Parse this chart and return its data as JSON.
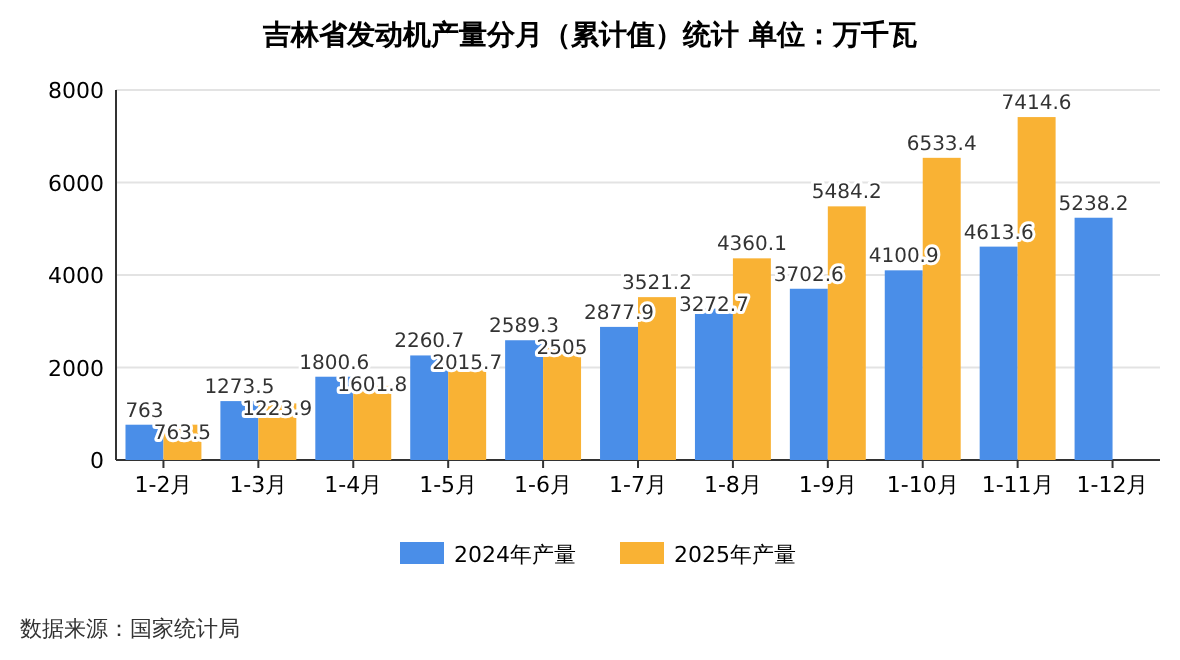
{
  "chart_data": {
    "type": "bar",
    "title": "吉林省发动机产量分月（累计值）统计  单位：万千瓦",
    "categories": [
      "1-2月",
      "1-3月",
      "1-4月",
      "1-5月",
      "1-6月",
      "1-7月",
      "1-8月",
      "1-9月",
      "1-10月",
      "1-11月",
      "1-12月"
    ],
    "series": [
      {
        "name": "2024年产量",
        "color": "#4a8ee8",
        "values": [
          763,
          1273.5,
          1800.6,
          2260.7,
          2589.3,
          2877.9,
          3272.7,
          3702.6,
          4100.9,
          4613.6,
          5238.2
        ]
      },
      {
        "name": "2025年产量",
        "color": "#f9b234",
        "values": [
          763.5,
          1223.9,
          1601.8,
          2015.7,
          2505,
          3521.2,
          4360.1,
          5484.2,
          6533.4,
          7414.6,
          null
        ]
      }
    ],
    "ylim": [
      0,
      8000
    ],
    "yticks": [
      0,
      2000,
      4000,
      6000,
      8000
    ],
    "grid": "y",
    "legend": "bottom",
    "data_labels": true,
    "annotations": [
      "数据来源：国家统计局"
    ]
  }
}
